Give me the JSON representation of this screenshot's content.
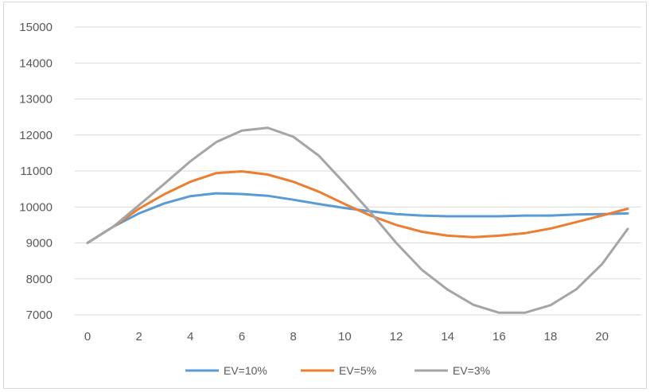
{
  "chart_data": {
    "type": "line",
    "title": "",
    "xlabel": "",
    "ylabel": "",
    "x": [
      0,
      1,
      2,
      3,
      4,
      5,
      6,
      7,
      8,
      9,
      10,
      11,
      12,
      13,
      14,
      15,
      16,
      17,
      18,
      19,
      20,
      21
    ],
    "xticks": [
      0,
      2,
      4,
      6,
      8,
      10,
      12,
      14,
      16,
      18,
      20
    ],
    "yticks": [
      7000,
      8000,
      9000,
      10000,
      11000,
      12000,
      13000,
      14000,
      15000
    ],
    "ylim": [
      7000,
      15000
    ],
    "grid": "horizontal",
    "legend": "bottom",
    "series": [
      {
        "name": "EV=10%",
        "color": "#5b9bd5",
        "values": [
          9000,
          9450,
          9820,
          10100,
          10300,
          10380,
          10360,
          10310,
          10200,
          10080,
          9970,
          9880,
          9800,
          9760,
          9740,
          9740,
          9740,
          9760,
          9760,
          9790,
          9800,
          9820
        ]
      },
      {
        "name": "EV=5%",
        "color": "#ed7d31",
        "values": [
          9000,
          9450,
          9950,
          10360,
          10700,
          10940,
          10990,
          10900,
          10700,
          10420,
          10080,
          9760,
          9500,
          9310,
          9200,
          9160,
          9200,
          9270,
          9400,
          9580,
          9760,
          9950
        ]
      },
      {
        "name": "EV=3%",
        "color": "#a5a5a5",
        "values": [
          9000,
          9450,
          10050,
          10650,
          11270,
          11800,
          12120,
          12200,
          11950,
          11420,
          10650,
          9850,
          9000,
          8250,
          7700,
          7280,
          7060,
          7060,
          7270,
          7710,
          8410,
          9390
        ]
      }
    ]
  }
}
